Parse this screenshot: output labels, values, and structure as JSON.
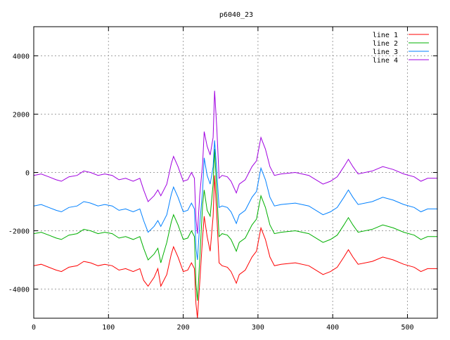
{
  "chart_data": {
    "type": "line",
    "title": "p6040_23",
    "xlabel": "",
    "ylabel": "",
    "xlim": [
      0,
      540
    ],
    "ylim": [
      -5000,
      5000
    ],
    "xticks": [
      0,
      100,
      200,
      300,
      400,
      500
    ],
    "yticks": [
      -4000,
      -2000,
      0,
      2000,
      4000
    ],
    "grid": true,
    "legend_position": "top-right",
    "x": [
      0,
      10,
      20,
      30,
      37,
      47,
      58,
      67,
      76,
      86,
      95,
      105,
      114,
      123,
      133,
      142,
      147,
      153,
      161,
      166,
      170,
      178,
      184,
      187,
      193,
      200,
      206,
      211,
      215,
      217,
      219,
      222,
      226,
      228,
      232,
      236,
      240,
      242,
      245,
      248,
      252,
      259,
      264,
      271,
      275,
      283,
      292,
      298,
      304,
      310,
      316,
      322,
      331,
      350,
      368,
      387,
      397,
      406,
      415,
      421,
      427,
      434,
      453,
      467,
      481,
      495,
      509,
      518,
      527,
      540
    ],
    "series": [
      {
        "name": "line 1",
        "color": "#ff0000",
        "values": [
          -3200,
          -3150,
          -3250,
          -3350,
          -3400,
          -3250,
          -3200,
          -3050,
          -3100,
          -3200,
          -3150,
          -3200,
          -3350,
          -3300,
          -3400,
          -3300,
          -3700,
          -3900,
          -3600,
          -3300,
          -3900,
          -3500,
          -2800,
          -2550,
          -2900,
          -3400,
          -3350,
          -3100,
          -3300,
          -4500,
          -5000,
          -3800,
          -2200,
          -1500,
          -2200,
          -2700,
          -1500,
          -100,
          -1500,
          -3100,
          -3200,
          -3250,
          -3400,
          -3800,
          -3500,
          -3350,
          -2900,
          -2700,
          -1900,
          -2300,
          -2900,
          -3200,
          -3150,
          -3100,
          -3200,
          -3500,
          -3400,
          -3250,
          -2900,
          -2650,
          -2900,
          -3150,
          -3050,
          -2900,
          -3000,
          -3150,
          -3250,
          -3400,
          -3300,
          -3300
        ]
      },
      {
        "name": "line 2",
        "color": "#00b000",
        "values": [
          -2100,
          -2050,
          -2150,
          -2250,
          -2300,
          -2150,
          -2100,
          -1950,
          -2000,
          -2100,
          -2050,
          -2100,
          -2250,
          -2200,
          -2300,
          -2200,
          -2600,
          -3000,
          -2800,
          -2600,
          -3100,
          -2400,
          -1700,
          -1450,
          -1800,
          -2300,
          -2250,
          -2000,
          -2200,
          -3800,
          -4400,
          -3000,
          -1100,
          -600,
          -1300,
          -1500,
          -400,
          800,
          -700,
          -2200,
          -2100,
          -2150,
          -2300,
          -2700,
          -2400,
          -2250,
          -1800,
          -1600,
          -800,
          -1200,
          -1800,
          -2100,
          -2050,
          -2000,
          -2100,
          -2400,
          -2300,
          -2150,
          -1800,
          -1550,
          -1800,
          -2050,
          -1950,
          -1800,
          -1900,
          -2050,
          -2150,
          -2300,
          -2200,
          -2200
        ]
      },
      {
        "name": "line 3",
        "color": "#0080ff",
        "values": [
          -1150,
          -1100,
          -1200,
          -1300,
          -1350,
          -1200,
          -1150,
          -1000,
          -1050,
          -1150,
          -1100,
          -1150,
          -1300,
          -1250,
          -1350,
          -1250,
          -1650,
          -2050,
          -1850,
          -1650,
          -1850,
          -1450,
          -750,
          -500,
          -850,
          -1350,
          -1300,
          -1050,
          -1250,
          -2600,
          -3000,
          -1800,
          -600,
          500,
          -100,
          -400,
          200,
          1100,
          0,
          -1200,
          -1150,
          -1200,
          -1350,
          -1750,
          -1450,
          -1300,
          -850,
          -650,
          150,
          -250,
          -850,
          -1150,
          -1100,
          -1050,
          -1150,
          -1450,
          -1350,
          -1200,
          -850,
          -600,
          -850,
          -1100,
          -1000,
          -850,
          -950,
          -1100,
          -1200,
          -1350,
          -1250,
          -1250
        ]
      },
      {
        "name": "line 4",
        "color": "#a000e0",
        "values": [
          -100,
          -50,
          -150,
          -250,
          -300,
          -150,
          -100,
          50,
          0,
          -100,
          -50,
          -100,
          -250,
          -200,
          -300,
          -200,
          -600,
          -1000,
          -800,
          -600,
          -800,
          -400,
          300,
          550,
          200,
          -300,
          -250,
          0,
          -200,
          -1600,
          -2100,
          -800,
          300,
          1400,
          900,
          600,
          1200,
          2800,
          1500,
          -200,
          -100,
          -150,
          -300,
          -700,
          -400,
          -250,
          200,
          400,
          1200,
          800,
          200,
          -100,
          -50,
          0,
          -100,
          -400,
          -300,
          -150,
          200,
          450,
          200,
          -50,
          50,
          200,
          100,
          -50,
          -150,
          -300,
          -200,
          -200
        ]
      }
    ]
  }
}
